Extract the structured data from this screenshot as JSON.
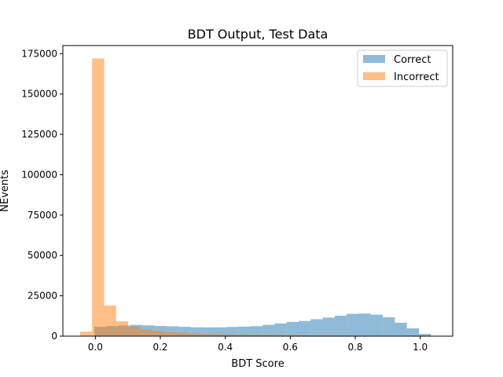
{
  "chart_data": {
    "type": "bar",
    "title": "BDT Output, Test Data",
    "xlabel": "BDT Score",
    "ylabel": "NEvents",
    "xlim": [
      -0.1,
      1.1
    ],
    "ylim": [
      0,
      180000
    ],
    "x_ticks": [
      0.0,
      0.2,
      0.4,
      0.6,
      0.8,
      1.0
    ],
    "x_tick_labels": [
      "0.0",
      "0.2",
      "0.4",
      "0.6",
      "0.8",
      "1.0"
    ],
    "y_ticks": [
      0,
      25000,
      50000,
      75000,
      100000,
      125000,
      150000,
      175000
    ],
    "y_tick_labels": [
      "0",
      "25000",
      "50000",
      "75000",
      "100000",
      "125000",
      "150000",
      "175000"
    ],
    "legend_position": "top-right",
    "grid": false,
    "series": [
      {
        "name": "Correct",
        "color": "#1f77b4",
        "alpha": 0.5,
        "bins": [
          {
            "x0": -0.003,
            "x1": 0.034,
            "value": 5800
          },
          {
            "x0": 0.034,
            "x1": 0.071,
            "value": 6300
          },
          {
            "x0": 0.071,
            "x1": 0.108,
            "value": 6600
          },
          {
            "x0": 0.108,
            "x1": 0.145,
            "value": 7000
          },
          {
            "x0": 0.145,
            "x1": 0.182,
            "value": 6700
          },
          {
            "x0": 0.182,
            "x1": 0.219,
            "value": 6300
          },
          {
            "x0": 0.219,
            "x1": 0.256,
            "value": 6100
          },
          {
            "x0": 0.256,
            "x1": 0.293,
            "value": 5800
          },
          {
            "x0": 0.293,
            "x1": 0.33,
            "value": 5500
          },
          {
            "x0": 0.33,
            "x1": 0.367,
            "value": 5400
          },
          {
            "x0": 0.367,
            "x1": 0.404,
            "value": 5500
          },
          {
            "x0": 0.404,
            "x1": 0.441,
            "value": 5700
          },
          {
            "x0": 0.441,
            "x1": 0.478,
            "value": 5900
          },
          {
            "x0": 0.478,
            "x1": 0.515,
            "value": 6200
          },
          {
            "x0": 0.515,
            "x1": 0.552,
            "value": 7000
          },
          {
            "x0": 0.552,
            "x1": 0.589,
            "value": 7900
          },
          {
            "x0": 0.589,
            "x1": 0.626,
            "value": 8800
          },
          {
            "x0": 0.626,
            "x1": 0.663,
            "value": 9400
          },
          {
            "x0": 0.663,
            "x1": 0.7,
            "value": 10500
          },
          {
            "x0": 0.7,
            "x1": 0.737,
            "value": 11500
          },
          {
            "x0": 0.737,
            "x1": 0.774,
            "value": 12700
          },
          {
            "x0": 0.774,
            "x1": 0.811,
            "value": 13800
          },
          {
            "x0": 0.811,
            "x1": 0.848,
            "value": 14000
          },
          {
            "x0": 0.848,
            "x1": 0.885,
            "value": 13300
          },
          {
            "x0": 0.885,
            "x1": 0.922,
            "value": 11700
          },
          {
            "x0": 0.922,
            "x1": 0.959,
            "value": 8300
          },
          {
            "x0": 0.959,
            "x1": 0.996,
            "value": 4800
          },
          {
            "x0": 0.996,
            "x1": 1.033,
            "value": 1400
          }
        ]
      },
      {
        "name": "Incorrect",
        "color": "#ff7f0e",
        "alpha": 0.5,
        "bins": [
          {
            "x0": -0.047,
            "x1": -0.01,
            "value": 2800
          },
          {
            "x0": -0.01,
            "x1": 0.027,
            "value": 172000
          },
          {
            "x0": 0.027,
            "x1": 0.064,
            "value": 19000
          },
          {
            "x0": 0.064,
            "x1": 0.101,
            "value": 9200
          },
          {
            "x0": 0.101,
            "x1": 0.138,
            "value": 6000
          },
          {
            "x0": 0.138,
            "x1": 0.175,
            "value": 4300
          },
          {
            "x0": 0.175,
            "x1": 0.212,
            "value": 3200
          },
          {
            "x0": 0.212,
            "x1": 0.249,
            "value": 2600
          },
          {
            "x0": 0.249,
            "x1": 0.286,
            "value": 2100
          },
          {
            "x0": 0.286,
            "x1": 0.323,
            "value": 1700
          },
          {
            "x0": 0.323,
            "x1": 0.36,
            "value": 1400
          },
          {
            "x0": 0.36,
            "x1": 0.397,
            "value": 1200
          },
          {
            "x0": 0.397,
            "x1": 0.434,
            "value": 1000
          },
          {
            "x0": 0.434,
            "x1": 0.471,
            "value": 900
          },
          {
            "x0": 0.471,
            "x1": 0.508,
            "value": 800
          },
          {
            "x0": 0.508,
            "x1": 0.545,
            "value": 750
          },
          {
            "x0": 0.545,
            "x1": 0.582,
            "value": 700
          },
          {
            "x0": 0.582,
            "x1": 0.619,
            "value": 650
          },
          {
            "x0": 0.619,
            "x1": 0.656,
            "value": 600
          },
          {
            "x0": 0.656,
            "x1": 0.693,
            "value": 550
          },
          {
            "x0": 0.693,
            "x1": 0.73,
            "value": 500
          },
          {
            "x0": 0.73,
            "x1": 0.767,
            "value": 450
          },
          {
            "x0": 0.767,
            "x1": 0.804,
            "value": 400
          },
          {
            "x0": 0.804,
            "x1": 0.841,
            "value": 350
          },
          {
            "x0": 0.841,
            "x1": 0.878,
            "value": 300
          },
          {
            "x0": 0.878,
            "x1": 0.915,
            "value": 250
          },
          {
            "x0": 0.915,
            "x1": 0.952,
            "value": 200
          },
          {
            "x0": 0.952,
            "x1": 0.989,
            "value": 150
          },
          {
            "x0": 0.989,
            "x1": 1.026,
            "value": 100
          },
          {
            "x0": 1.026,
            "x1": 1.063,
            "value": 50
          }
        ]
      }
    ]
  }
}
